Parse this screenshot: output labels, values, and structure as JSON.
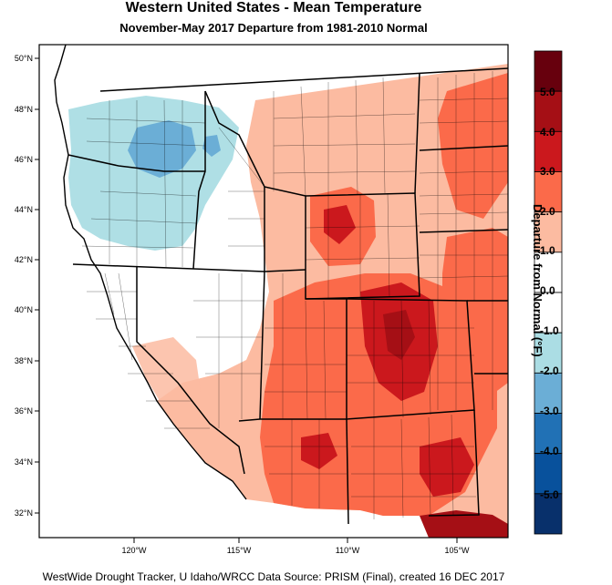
{
  "title": "Western United States - Mean Temperature",
  "subtitle": "November-May 2017  Departure from 1981-2010 Normal",
  "footer": "WestWide Drought Tracker, U Idaho/WRCC Data Source: PRISM (Final), created 16 DEC 2017",
  "map": {
    "lat_labels": [
      "50°N",
      "48°N",
      "46°N",
      "44°N",
      "42°N",
      "40°N",
      "38°N",
      "36°N",
      "34°N",
      "32°N"
    ],
    "lon_labels": [
      "120°W",
      "115°W",
      "110°W",
      "105°W"
    ]
  },
  "colorbar": {
    "title": "Departure from Normal (°F)",
    "labels": [
      "5.0",
      "4.0",
      "3.0",
      "2.0",
      "1.0",
      "0.0",
      "-1.0",
      "-2.0",
      "-3.0",
      "-4.0",
      "-5.0"
    ],
    "colors": [
      "#67000d",
      "#a50f15",
      "#cb181d",
      "#fb6a4a",
      "#fcbba1",
      "#ffffff",
      "#ffffff",
      "#abdde4",
      "#6baed6",
      "#2171b5",
      "#08519c",
      "#08306b"
    ]
  },
  "colors": {
    "cool": "#abdde4",
    "cool_strong": "#6baed6",
    "warm_light": "#fcbba1",
    "warm": "#fb6a4a",
    "warm_strong": "#cb181d",
    "warm_extreme": "#a50f15"
  }
}
